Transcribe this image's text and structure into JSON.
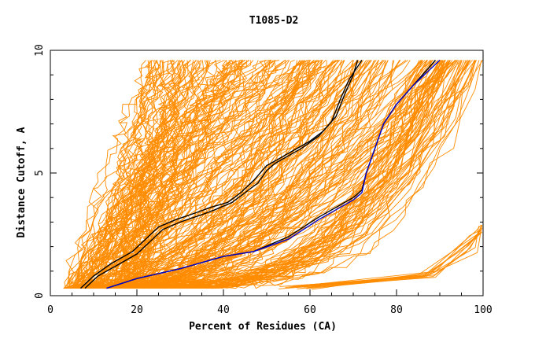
{
  "chart_data": {
    "type": "line",
    "title": "T1085-D2",
    "xlabel": "Percent of Residues (CA)",
    "ylabel": "Distance Cutoff, A",
    "xlim": [
      0,
      100
    ],
    "ylim": [
      0,
      10
    ],
    "x_ticks": [
      0,
      20,
      40,
      60,
      80,
      100
    ],
    "x_tick_labels": [
      "0",
      "20",
      "40",
      "60",
      "80",
      "100"
    ],
    "y_ticks": [
      0,
      5,
      10
    ],
    "y_tick_labels": [
      "0",
      "5",
      "10"
    ],
    "grid": false,
    "legend": "none",
    "colors": {
      "background_models": "#ff8c00",
      "highlight_black": "#000000",
      "highlight_blue": "#0000cc",
      "axis": "#000000"
    },
    "highlighted_series": [
      {
        "color": "#000000",
        "x": [
          8,
          11,
          15,
          20,
          23,
          26,
          30,
          35,
          38,
          42,
          45,
          48,
          50,
          52,
          55,
          58,
          62,
          65,
          67,
          69,
          72
        ],
        "y": [
          0.3,
          0.8,
          1.2,
          1.7,
          2.2,
          2.7,
          3.0,
          3.3,
          3.5,
          3.8,
          4.2,
          4.6,
          5.1,
          5.4,
          5.7,
          6.0,
          6.5,
          7.1,
          8.0,
          8.8,
          9.6
        ]
      },
      {
        "color": "#000000",
        "x": [
          7,
          10,
          14,
          19,
          22,
          25,
          29,
          34,
          37,
          41,
          44,
          47,
          50,
          53,
          56,
          60,
          63,
          66,
          68,
          70,
          71
        ],
        "y": [
          0.3,
          0.8,
          1.3,
          1.8,
          2.3,
          2.8,
          3.1,
          3.4,
          3.6,
          3.8,
          4.2,
          4.7,
          5.3,
          5.6,
          5.9,
          6.3,
          6.7,
          7.3,
          8.2,
          9.0,
          9.6
        ]
      },
      {
        "color": "#000000",
        "x": [
          13,
          20,
          30,
          40,
          47,
          55,
          62,
          67,
          70,
          72,
          73,
          75,
          77,
          80,
          84,
          87,
          89
        ],
        "y": [
          0.3,
          0.7,
          1.1,
          1.6,
          1.8,
          2.4,
          3.2,
          3.7,
          4.0,
          4.3,
          5.0,
          6.0,
          7.0,
          7.8,
          8.6,
          9.2,
          9.6
        ]
      },
      {
        "color": "#0000cc",
        "x": [
          13,
          20,
          30,
          40,
          47,
          55,
          62,
          67,
          70,
          72,
          73,
          75,
          77,
          80,
          84,
          87,
          90
        ],
        "y": [
          0.3,
          0.7,
          1.1,
          1.6,
          1.8,
          2.3,
          3.1,
          3.6,
          3.9,
          4.2,
          5.0,
          6.0,
          7.0,
          7.8,
          8.6,
          9.1,
          9.6
        ]
      }
    ]
  }
}
